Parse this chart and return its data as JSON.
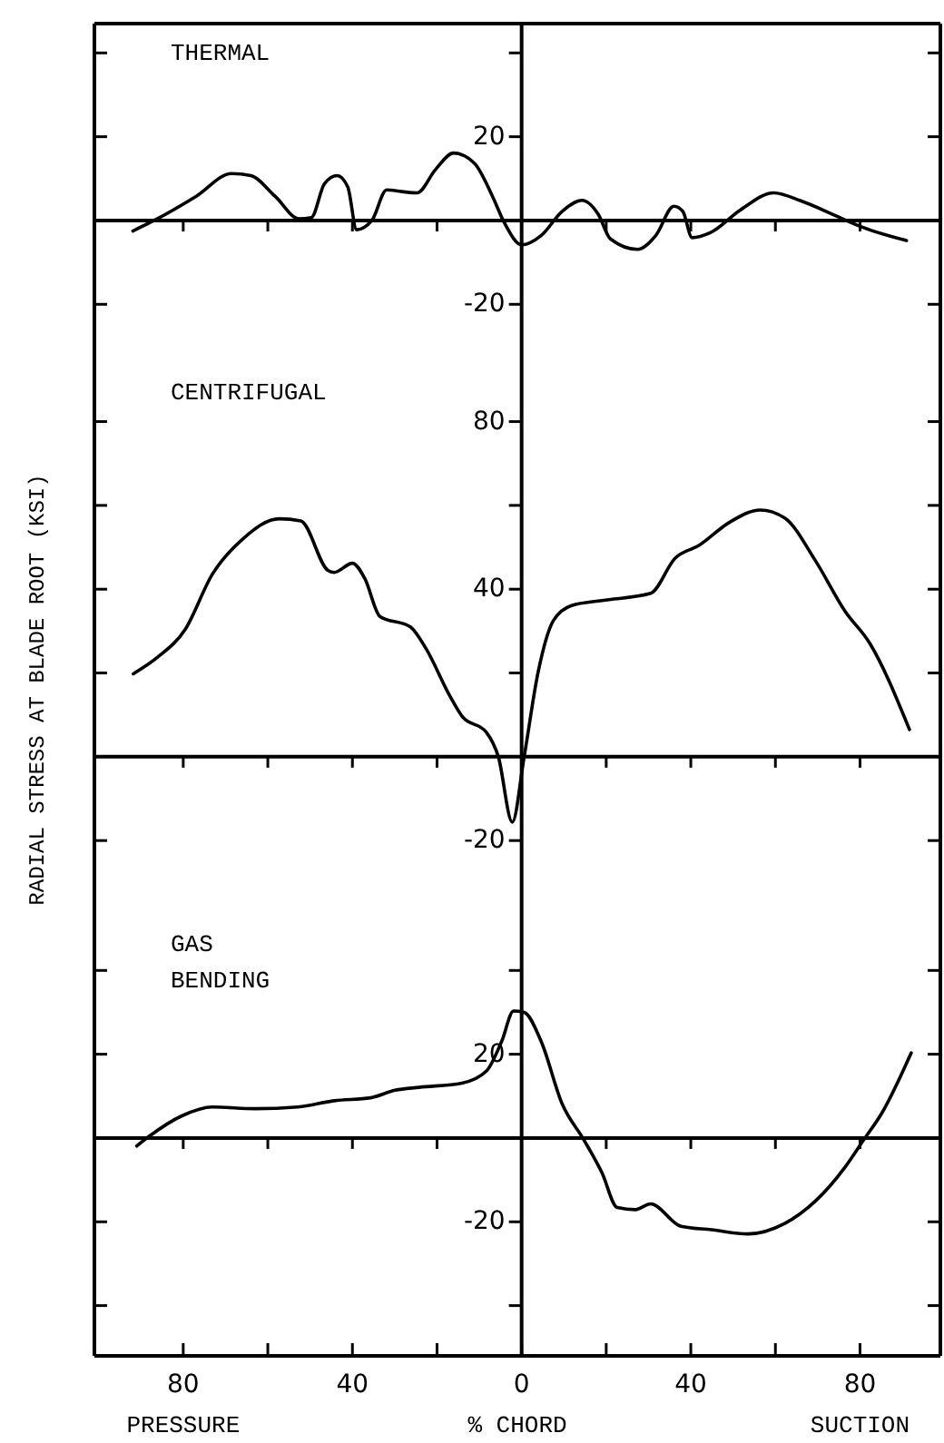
{
  "chart_data": [
    {
      "type": "line",
      "title": "THERMAL",
      "color": "#000000",
      "xlim": [
        -101,
        99
      ],
      "ylim": [
        -34,
        47
      ],
      "xticks": [
        {
          "value": -80,
          "label": null
        },
        {
          "value": -60,
          "label": null
        },
        {
          "value": -40,
          "label": null
        },
        {
          "value": -20,
          "label": null
        },
        {
          "value": 0,
          "label": null
        },
        {
          "value": 20,
          "label": null
        },
        {
          "value": 40,
          "label": null
        },
        {
          "value": 60,
          "label": null
        },
        {
          "value": 80,
          "label": null
        }
      ],
      "yticks": [
        {
          "value": 40,
          "label": null
        },
        20,
        -20
      ],
      "tick_labels": "y",
      "x": [
        -91.9,
        -86.9,
        -76.9,
        -68.6,
        -64,
        -58.3,
        -52.6,
        -49.7,
        -46.6,
        -43.6,
        -41.1,
        -39,
        -35.4,
        -31.9,
        -28.3,
        -24.7,
        -20.4,
        -16.1,
        -11.1,
        -6.9,
        -4,
        0,
        4.6,
        9.6,
        14.3,
        18.1,
        21,
        27.4,
        31.7,
        36,
        38.1,
        40.3,
        44.6,
        51.7,
        59.6,
        66,
        74.6,
        80.3,
        91
      ],
      "values": [
        -2.5,
        0,
        5.8,
        11.2,
        10.7,
        5.8,
        0.4,
        0.7,
        8.8,
        10.7,
        8,
        -2.2,
        0,
        7.3,
        6.9,
        6.6,
        12.1,
        16.1,
        13.6,
        5.8,
        -0.7,
        -5.8,
        -3.6,
        2.2,
        4.8,
        1.5,
        -4.4,
        -6.9,
        -3.6,
        3.4,
        2.2,
        -4.1,
        -2.9,
        2.5,
        6.6,
        4.7,
        1,
        -1.5,
        -4.8
      ]
    },
    {
      "type": "line",
      "title": "CENTRIFUGAL",
      "ylabel": "RADIAL STRESS AT BLADE ROOT (KSI)",
      "color": "#000000",
      "xlim": [
        -101,
        99
      ],
      "ylim": [
        -36,
        94
      ],
      "xticks": [
        {
          "value": -80,
          "label": null
        },
        {
          "value": -60,
          "label": null
        },
        {
          "value": -40,
          "label": null
        },
        {
          "value": -20,
          "label": null
        },
        {
          "value": 0,
          "label": null
        },
        {
          "value": 20,
          "label": null
        },
        {
          "value": 40,
          "label": null
        },
        {
          "value": 60,
          "label": null
        },
        {
          "value": 80,
          "label": null
        }
      ],
      "yticks": [
        80,
        {
          "value": 60,
          "label": null
        },
        40,
        {
          "value": 20,
          "label": null
        },
        -20
      ],
      "tick_labels": "y",
      "x": [
        -91.8,
        -86,
        -79.6,
        -73.1,
        -65.9,
        -57.3,
        -52.2,
        -45.8,
        -44.3,
        -40,
        -37.1,
        -33.5,
        -26.3,
        -22.7,
        -16.9,
        -14.1,
        -8.3,
        -5.5,
        -2.2,
        0.6,
        3.9,
        7.5,
        11.8,
        19,
        30.5,
        36.3,
        42,
        49.2,
        56.4,
        62.2,
        69.4,
        76.5,
        82.3,
        91.7
      ],
      "values": [
        19.8,
        23.8,
        30.3,
        43.6,
        52,
        56.8,
        56.3,
        44.5,
        44,
        46.2,
        42.6,
        33.5,
        31,
        26,
        14.4,
        9.7,
        5.8,
        0,
        -15.6,
        0,
        20.2,
        32.5,
        36.1,
        37.3,
        39,
        47.4,
        50.5,
        56,
        58.9,
        57,
        46.9,
        34.7,
        27.1,
        6.5
      ]
    },
    {
      "type": "line",
      "title": "GAS BENDING",
      "xlabel": "% CHORD",
      "annotations": [
        "PRESSURE",
        "SUCTION"
      ],
      "color": "#000000",
      "xlim": [
        -101,
        99
      ],
      "ylim": [
        -52,
        55
      ],
      "xticks": [
        {
          "value": -80,
          "label": "80"
        },
        {
          "value": -60,
          "label": null
        },
        {
          "value": -40,
          "label": "40"
        },
        {
          "value": -20,
          "label": null
        },
        {
          "value": 0,
          "label": "0"
        },
        {
          "value": 20,
          "label": null
        },
        {
          "value": 40,
          "label": "40"
        },
        {
          "value": 60,
          "label": null
        },
        {
          "value": 80,
          "label": "80"
        }
      ],
      "yticks": [
        {
          "value": 40,
          "label": null
        },
        20,
        -20,
        {
          "value": -40,
          "label": null
        }
      ],
      "x": [
        -91,
        -88.2,
        -80.3,
        -73.1,
        -63,
        -52.9,
        -44.3,
        -35.7,
        -29.9,
        -24.2,
        -14.1,
        -8.3,
        -4.7,
        -1.9,
        0.6,
        4.6,
        9.6,
        14.7,
        19,
        22.6,
        26.9,
        30.5,
        37.7,
        44.9,
        53.5,
        62.2,
        69.4,
        76.5,
        80.9,
        85.2,
        92.1
      ],
      "values": [
        -1.9,
        0.3,
        5.3,
        7.4,
        7,
        7.4,
        8.9,
        9.6,
        11.4,
        12.1,
        13.1,
        16,
        23.1,
        30.3,
        30,
        23.1,
        8.1,
        -0.4,
        -8.3,
        -16.6,
        -17.1,
        -15.7,
        -21.1,
        -21.9,
        -22.9,
        -20.4,
        -15.1,
        -6.9,
        -0.4,
        6,
        20.3
      ]
    }
  ]
}
